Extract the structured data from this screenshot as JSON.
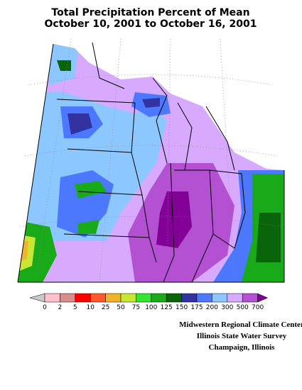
{
  "title": [
    "Total Precipitation Percent of Mean",
    "October 10, 2001 to October 16, 2001"
  ],
  "legend": {
    "ticks": [
      0,
      2,
      5,
      10,
      25,
      50,
      75,
      100,
      125,
      150,
      175,
      200,
      300,
      500,
      700
    ],
    "colors": [
      "#c8c8c8",
      "#ffc0cb",
      "#d98c8c",
      "#ff0000",
      "#ff5a28",
      "#f0b428",
      "#c8e632",
      "#32e632",
      "#19aa19",
      "#0a640a",
      "#3232a0",
      "#4b78ff",
      "#8cc8ff",
      "#d7aaff",
      "#b450d2",
      "#820096"
    ]
  },
  "credits": [
    "Midwestern Regional Climate Center",
    "Illinois State Water Survey",
    "Champaign, Illinois"
  ]
}
